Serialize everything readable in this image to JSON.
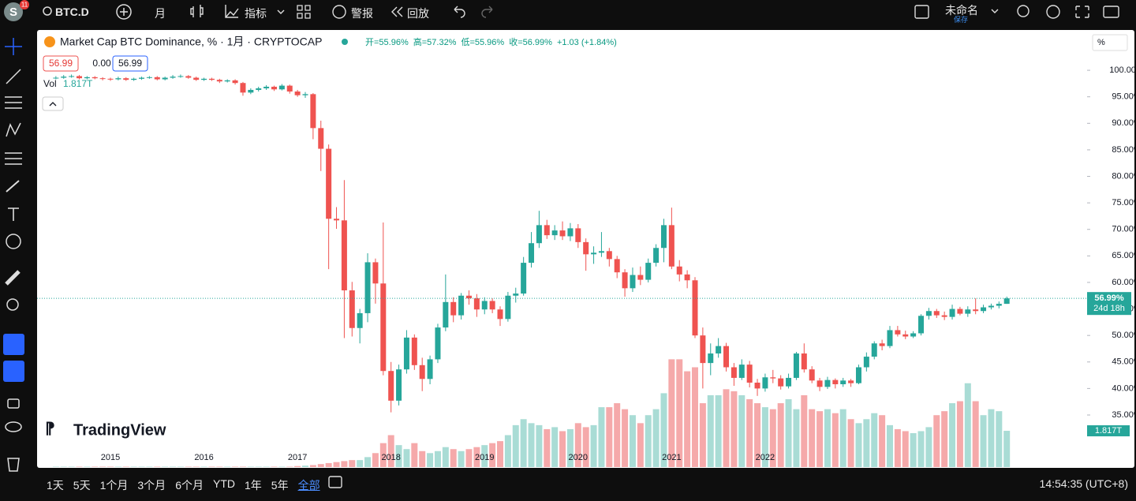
{
  "toolbar": {
    "avatar": "S",
    "badge": "11",
    "symbol": "BTC.D",
    "interval": "月",
    "indicators": "指标",
    "alerts": "警报",
    "replay": "回放",
    "layout_name": "未命名",
    "save": "保存"
  },
  "chart_data": {
    "type": "candlestick",
    "title": "Market Cap BTC Dominance, % · 1月 · CRYPTOCAP",
    "ohlc_legend": [
      "开=55.96%",
      "高=57.32%",
      "低=55.96%",
      "收=56.99%",
      "+1.03 (+1.84%)"
    ],
    "price_tags": [
      "56.99",
      "0.00",
      "56.99"
    ],
    "volume_title": "Vol",
    "volume_last_label": "1.817T",
    "last_price_label": "56.99%",
    "countdown": "24d 18h",
    "axis_unit": "%",
    "watermark": "TradingView",
    "up_color": "#26a69a",
    "down_color": "#ef5350",
    "up_volume_color": "#a9dcd5",
    "down_volume_color": "#f5a9aa",
    "ylim": [
      28.75,
      107.6
    ],
    "yticks": [
      {
        "value": 35,
        "label": "35.00%"
      },
      {
        "value": 40,
        "label": "40.00%"
      },
      {
        "value": 45,
        "label": "45.00%"
      },
      {
        "value": 50,
        "label": "50.00%"
      },
      {
        "value": 55,
        "label": "55.00%"
      },
      {
        "value": 60,
        "label": "60.00%"
      },
      {
        "value": 65,
        "label": "65.00%"
      },
      {
        "value": 70,
        "label": "70.00%"
      },
      {
        "value": 75,
        "label": "75.00%"
      },
      {
        "value": 80,
        "label": "80.00%"
      },
      {
        "value": 85,
        "label": "85.00%"
      },
      {
        "value": 90,
        "label": "90.00%"
      },
      {
        "value": 95,
        "label": "95.00%"
      },
      {
        "value": 100,
        "label": "100.00%"
      }
    ],
    "xtick_labels": [
      "2015",
      "2016",
      "2017",
      "2018",
      "2019",
      "2020",
      "2021",
      "2022"
    ],
    "candles": [
      [
        98.5,
        98.9,
        98.3,
        98.6
      ],
      [
        98.6,
        99.1,
        98.4,
        98.8
      ],
      [
        98.8,
        99.2,
        98.6,
        98.9
      ],
      [
        98.9,
        99.1,
        98.3,
        98.5
      ],
      [
        98.5,
        98.9,
        98.3,
        98.7
      ],
      [
        98.7,
        98.9,
        98.3,
        98.5
      ],
      [
        98.5,
        98.7,
        98.1,
        98.4
      ],
      [
        98.4,
        98.6,
        98.0,
        98.3
      ],
      [
        98.3,
        98.8,
        98.1,
        98.5
      ],
      [
        98.5,
        98.7,
        98.0,
        98.2
      ],
      [
        98.2,
        98.6,
        98.0,
        98.4
      ],
      [
        98.4,
        98.8,
        98.2,
        98.6
      ],
      [
        98.6,
        98.9,
        98.4,
        98.7
      ],
      [
        98.7,
        98.9,
        98.1,
        98.3
      ],
      [
        98.3,
        98.8,
        98.1,
        98.6
      ],
      [
        98.6,
        99.1,
        98.4,
        98.8
      ],
      [
        98.8,
        99.2,
        98.6,
        98.9
      ],
      [
        98.9,
        99.1,
        98.4,
        98.6
      ],
      [
        98.6,
        98.8,
        98.0,
        98.2
      ],
      [
        98.2,
        98.6,
        98.0,
        98.4
      ],
      [
        98.4,
        98.6,
        98.0,
        98.2
      ],
      [
        98.2,
        98.4,
        97.6,
        97.9
      ],
      [
        97.9,
        98.3,
        97.7,
        98.1
      ],
      [
        98.1,
        98.3,
        97.3,
        97.6
      ],
      [
        97.6,
        97.8,
        95.2,
        95.8
      ],
      [
        95.8,
        96.6,
        95.5,
        96.3
      ],
      [
        96.3,
        96.9,
        96.0,
        96.6
      ],
      [
        96.6,
        97.2,
        96.3,
        96.9
      ],
      [
        96.9,
        97.1,
        96.1,
        96.4
      ],
      [
        96.4,
        97.4,
        96.2,
        97.1
      ],
      [
        97.1,
        97.3,
        95.6,
        96.0
      ],
      [
        96.0,
        96.3,
        95.0,
        95.3
      ],
      [
        95.3,
        95.9,
        94.8,
        95.5
      ],
      [
        95.5,
        95.7,
        87.0,
        89.1
      ],
      [
        89.1,
        90.5,
        81.0,
        85.2
      ],
      [
        85.2,
        86.0,
        62.5,
        72.0
      ],
      [
        72.0,
        74.2,
        70.1,
        71.7
      ],
      [
        71.7,
        79.3,
        49.5,
        58.5
      ],
      [
        58.5,
        60.1,
        49.8,
        51.4
      ],
      [
        51.4,
        55.0,
        48.5,
        54.2
      ],
      [
        54.2,
        65.5,
        52.5,
        63.8
      ],
      [
        63.8,
        64.5,
        56.0,
        59.8
      ],
      [
        59.8,
        71.3,
        42.5,
        43.3
      ],
      [
        43.3,
        45.0,
        35.5,
        37.7
      ],
      [
        37.7,
        44.5,
        36.8,
        43.6
      ],
      [
        43.6,
        51.0,
        42.8,
        49.6
      ],
      [
        49.6,
        50.2,
        43.5,
        44.4
      ],
      [
        44.4,
        45.8,
        39.5,
        41.8
      ],
      [
        41.8,
        46.2,
        40.8,
        45.5
      ],
      [
        45.5,
        52.2,
        44.8,
        51.5
      ],
      [
        51.5,
        61.5,
        50.8,
        56.3
      ],
      [
        56.3,
        57.2,
        52.5,
        53.8
      ],
      [
        53.8,
        58.0,
        53.0,
        57.5
      ],
      [
        57.5,
        58.5,
        55.8,
        57.0
      ],
      [
        57.0,
        57.8,
        53.5,
        54.9
      ],
      [
        54.9,
        57.2,
        54.0,
        56.5
      ],
      [
        56.5,
        57.0,
        54.2,
        54.9
      ],
      [
        54.9,
        55.5,
        51.8,
        53.1
      ],
      [
        53.1,
        58.2,
        52.6,
        57.5
      ],
      [
        57.5,
        59.0,
        56.2,
        57.9
      ],
      [
        57.9,
        64.8,
        57.5,
        63.7
      ],
      [
        63.7,
        69.5,
        62.8,
        67.4
      ],
      [
        67.4,
        73.5,
        66.5,
        70.8
      ],
      [
        70.8,
        71.8,
        68.2,
        68.9
      ],
      [
        68.9,
        70.8,
        68.0,
        69.8
      ],
      [
        69.8,
        71.5,
        68.0,
        68.7
      ],
      [
        68.7,
        71.2,
        67.8,
        70.2
      ],
      [
        70.2,
        71.0,
        66.5,
        67.6
      ],
      [
        67.6,
        68.3,
        62.2,
        65.3
      ],
      [
        65.3,
        66.8,
        63.5,
        65.6
      ],
      [
        65.6,
        69.5,
        64.8,
        65.9
      ],
      [
        65.9,
        66.5,
        63.0,
        64.4
      ],
      [
        64.4,
        65.0,
        60.8,
        61.9
      ],
      [
        61.9,
        62.5,
        57.3,
        58.9
      ],
      [
        58.9,
        62.8,
        58.2,
        61.4
      ],
      [
        61.4,
        63.0,
        59.5,
        60.5
      ],
      [
        60.5,
        64.5,
        60.0,
        63.7
      ],
      [
        63.7,
        67.2,
        63.0,
        66.5
      ],
      [
        66.5,
        72.0,
        63.8,
        70.8
      ],
      [
        70.8,
        74.1,
        62.5,
        63.0
      ],
      [
        63.0,
        64.2,
        60.2,
        61.5
      ],
      [
        61.5,
        62.3,
        58.9,
        60.4
      ],
      [
        60.4,
        61.0,
        49.5,
        50.0
      ],
      [
        50.0,
        51.5,
        40.0,
        44.8
      ],
      [
        44.8,
        48.5,
        42.5,
        46.6
      ],
      [
        46.6,
        49.5,
        45.8,
        48.0
      ],
      [
        48.0,
        48.6,
        43.2,
        44.0
      ],
      [
        44.0,
        44.8,
        40.5,
        42.0
      ],
      [
        42.0,
        45.5,
        41.6,
        44.5
      ],
      [
        44.5,
        45.2,
        40.2,
        41.1
      ],
      [
        41.1,
        41.8,
        38.6,
        40.0
      ],
      [
        40.0,
        42.8,
        39.4,
        42.1
      ],
      [
        42.1,
        43.5,
        41.0,
        41.9
      ],
      [
        41.9,
        42.5,
        39.8,
        40.4
      ],
      [
        40.4,
        42.8,
        40.0,
        42.0
      ],
      [
        42.0,
        46.9,
        41.6,
        46.6
      ],
      [
        46.6,
        48.5,
        43.0,
        43.6
      ],
      [
        43.6,
        44.2,
        41.0,
        41.5
      ],
      [
        41.5,
        42.0,
        39.5,
        40.3
      ],
      [
        40.3,
        42.2,
        39.9,
        41.6
      ],
      [
        41.6,
        41.9,
        40.0,
        40.8
      ],
      [
        40.8,
        42.0,
        40.3,
        41.5
      ],
      [
        41.5,
        41.8,
        40.3,
        41.0
      ],
      [
        41.0,
        44.5,
        40.8,
        44.0
      ],
      [
        44.0,
        46.8,
        43.2,
        46.0
      ],
      [
        46.0,
        48.9,
        45.5,
        48.5
      ],
      [
        48.5,
        49.2,
        47.2,
        48.0
      ],
      [
        48.0,
        51.8,
        47.6,
        51.0
      ],
      [
        51.0,
        51.8,
        49.8,
        50.2
      ],
      [
        50.2,
        50.9,
        49.3,
        49.8
      ],
      [
        49.8,
        50.8,
        49.5,
        50.4
      ],
      [
        50.4,
        54.0,
        50.0,
        53.7
      ],
      [
        53.7,
        55.2,
        53.0,
        54.6
      ],
      [
        54.6,
        55.0,
        53.3,
        53.8
      ],
      [
        53.8,
        54.5,
        52.9,
        53.5
      ],
      [
        53.5,
        55.8,
        53.0,
        55.0
      ],
      [
        55.0,
        55.4,
        53.8,
        54.1
      ],
      [
        54.1,
        55.5,
        53.5,
        54.9
      ],
      [
        54.9,
        57.0,
        54.0,
        54.6
      ],
      [
        54.6,
        55.8,
        54.2,
        55.3
      ],
      [
        55.3,
        56.0,
        54.9,
        55.6
      ],
      [
        55.6,
        56.4,
        55.1,
        55.96
      ],
      [
        55.96,
        57.32,
        55.96,
        56.99
      ]
    ],
    "volume": [
      0.02,
      0.02,
      0.02,
      0.02,
      0.02,
      0.02,
      0.02,
      0.02,
      0.02,
      0.02,
      0.02,
      0.02,
      0.02,
      0.02,
      0.02,
      0.02,
      0.02,
      0.02,
      0.02,
      0.02,
      0.02,
      0.02,
      0.02,
      0.02,
      0.02,
      0.02,
      0.02,
      0.02,
      0.02,
      0.02,
      0.02,
      0.05,
      0.07,
      0.1,
      0.15,
      0.2,
      0.25,
      0.3,
      0.35,
      0.35,
      0.5,
      0.7,
      1.2,
      1.6,
      1.1,
      0.9,
      1.2,
      0.8,
      0.7,
      0.8,
      1.0,
      0.9,
      0.8,
      0.9,
      1.0,
      1.1,
      1.2,
      1.3,
      1.6,
      2.1,
      2.4,
      2.2,
      2.1,
      1.9,
      2.0,
      1.8,
      1.9,
      2.2,
      2.0,
      2.1,
      3.0,
      3.0,
      3.2,
      2.9,
      2.6,
      2.2,
      2.6,
      2.9,
      3.7,
      5.4,
      5.4,
      4.8,
      5.0,
      3.2,
      3.6,
      3.6,
      3.9,
      3.8,
      3.6,
      3.4,
      3.2,
      3.0,
      2.9,
      3.2,
      3.4,
      2.9,
      3.6,
      2.9,
      2.8,
      2.9,
      2.7,
      2.9,
      2.4,
      2.2,
      2.4,
      2.7,
      2.6,
      2.1,
      1.9,
      1.8,
      1.7,
      1.8,
      2.0,
      2.6,
      2.8,
      3.2,
      3.3,
      4.2,
      3.3,
      2.6,
      2.9,
      2.8,
      1.817
    ]
  },
  "bottom_bar": {
    "ranges": [
      "1天",
      "5天",
      "1个月",
      "3个月",
      "6个月",
      "YTD",
      "1年",
      "5年",
      "全部"
    ],
    "clock": "14:54:35 (UTC+8)"
  }
}
